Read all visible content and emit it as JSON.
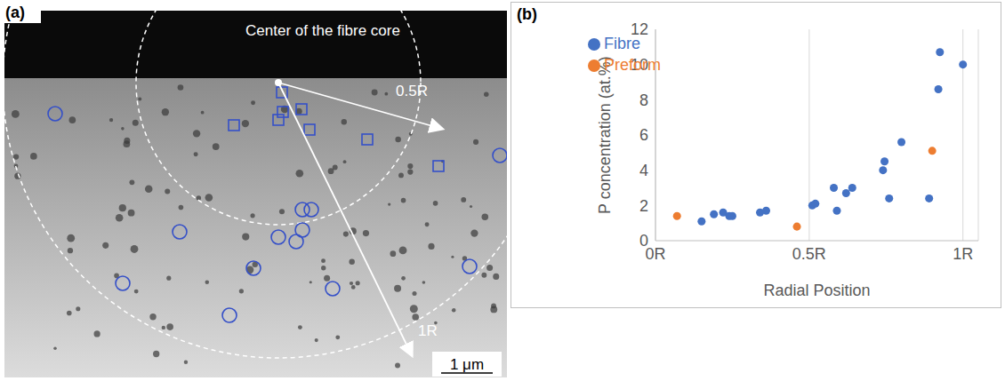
{
  "image_panel": {
    "label": "(a)",
    "center_label": "Center of the fibre core",
    "radius_labels": [
      "0.5R",
      "1R"
    ],
    "scale_bar": "1 μm"
  },
  "chart_data": {
    "type": "scatter",
    "panel_label": "(b)",
    "x_label": "Radial Position",
    "y_label": "P concentration (at.%)",
    "xlim": [
      0,
      1.05
    ],
    "xticks": [
      {
        "value": 0,
        "label": "0R"
      },
      {
        "value": 0.5,
        "label": "0.5R"
      },
      {
        "value": 1,
        "label": "1R"
      }
    ],
    "ylim": [
      0,
      12
    ],
    "yticks": [
      0,
      2,
      4,
      6,
      8,
      10,
      12
    ],
    "grid": "x",
    "legend": "upper left",
    "series": [
      {
        "name": "Fibre",
        "color": "#4472c4",
        "marker": "circle",
        "x": [
          0.15,
          0.19,
          0.22,
          0.24,
          0.25,
          0.34,
          0.36,
          0.51,
          0.52,
          0.58,
          0.59,
          0.62,
          0.64,
          0.74,
          0.745,
          0.76,
          0.8,
          0.89,
          0.92,
          0.925,
          1.0
        ],
        "values": [
          1.1,
          1.5,
          1.6,
          1.4,
          1.4,
          1.6,
          1.7,
          2.0,
          2.1,
          3.0,
          1.7,
          2.7,
          3.0,
          4.0,
          4.5,
          2.4,
          5.6,
          2.4,
          8.6,
          10.7,
          10.0
        ]
      },
      {
        "name": "Preform",
        "color": "#ed7d31",
        "marker": "circle",
        "x": [
          0.07,
          0.46,
          0.9
        ],
        "values": [
          1.4,
          0.8,
          5.1
        ]
      }
    ]
  }
}
